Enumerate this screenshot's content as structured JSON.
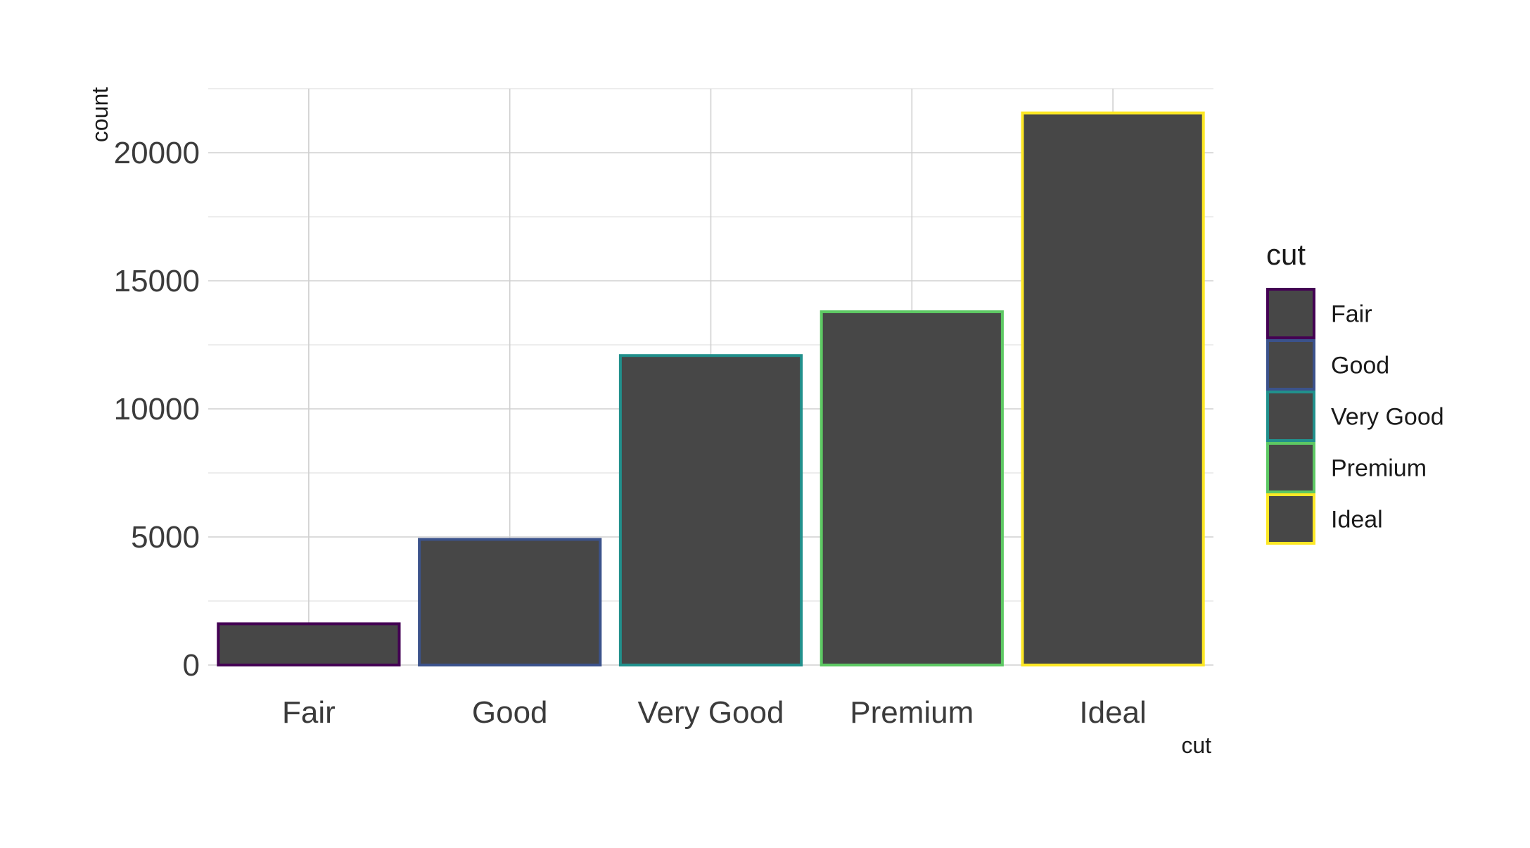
{
  "chart_data": {
    "type": "bar",
    "x_label": "cut",
    "y_label": "count",
    "categories": [
      "Fair",
      "Good",
      "Very Good",
      "Premium",
      "Ideal"
    ],
    "values": [
      1610,
      4906,
      12082,
      13791,
      21551
    ],
    "outline_colors": [
      "#440154",
      "#3B528B",
      "#21908C",
      "#5DC863",
      "#FDE725"
    ],
    "bar_fill": "#474747",
    "ylim": [
      0,
      22500
    ],
    "y_ticks": [
      0,
      5000,
      10000,
      15000,
      20000
    ],
    "y_tick_labels": [
      "0",
      "5000",
      "10000",
      "15000",
      "20000"
    ],
    "grid": true,
    "legend": {
      "title": "cut",
      "position": "right",
      "entries": [
        "Fair",
        "Good",
        "Very Good",
        "Premium",
        "Ideal"
      ]
    }
  }
}
